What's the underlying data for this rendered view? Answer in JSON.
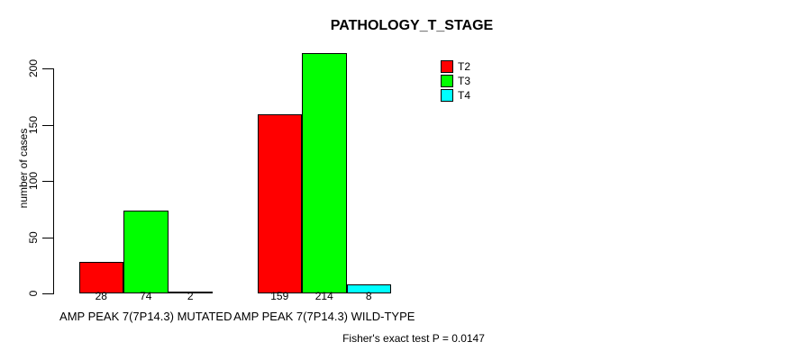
{
  "chart_data": {
    "type": "bar",
    "title": "PATHOLOGY_T_STAGE",
    "xlabel": "",
    "ylabel": "number of cases",
    "ylim": [
      0,
      200
    ],
    "yticks": [
      "0",
      "50",
      "100",
      "150",
      "200"
    ],
    "grid": false,
    "legend_position": "top-right",
    "bar_value_labels_shown": true,
    "bar_border_color": "#000000",
    "categories": [
      "AMP PEAK 7(7P14.3) MUTATED",
      "AMP PEAK 7(7P14.3) WILD-TYPE"
    ],
    "series": [
      {
        "name": "T2",
        "color": "#ff0000",
        "values": [
          28,
          159
        ]
      },
      {
        "name": "T3",
        "color": "#00ff00",
        "values": [
          74,
          214
        ]
      },
      {
        "name": "T4",
        "color": "#00ffff",
        "values": [
          2,
          8
        ]
      }
    ],
    "annotation": "Fisher's exact test P = 0.0147"
  }
}
